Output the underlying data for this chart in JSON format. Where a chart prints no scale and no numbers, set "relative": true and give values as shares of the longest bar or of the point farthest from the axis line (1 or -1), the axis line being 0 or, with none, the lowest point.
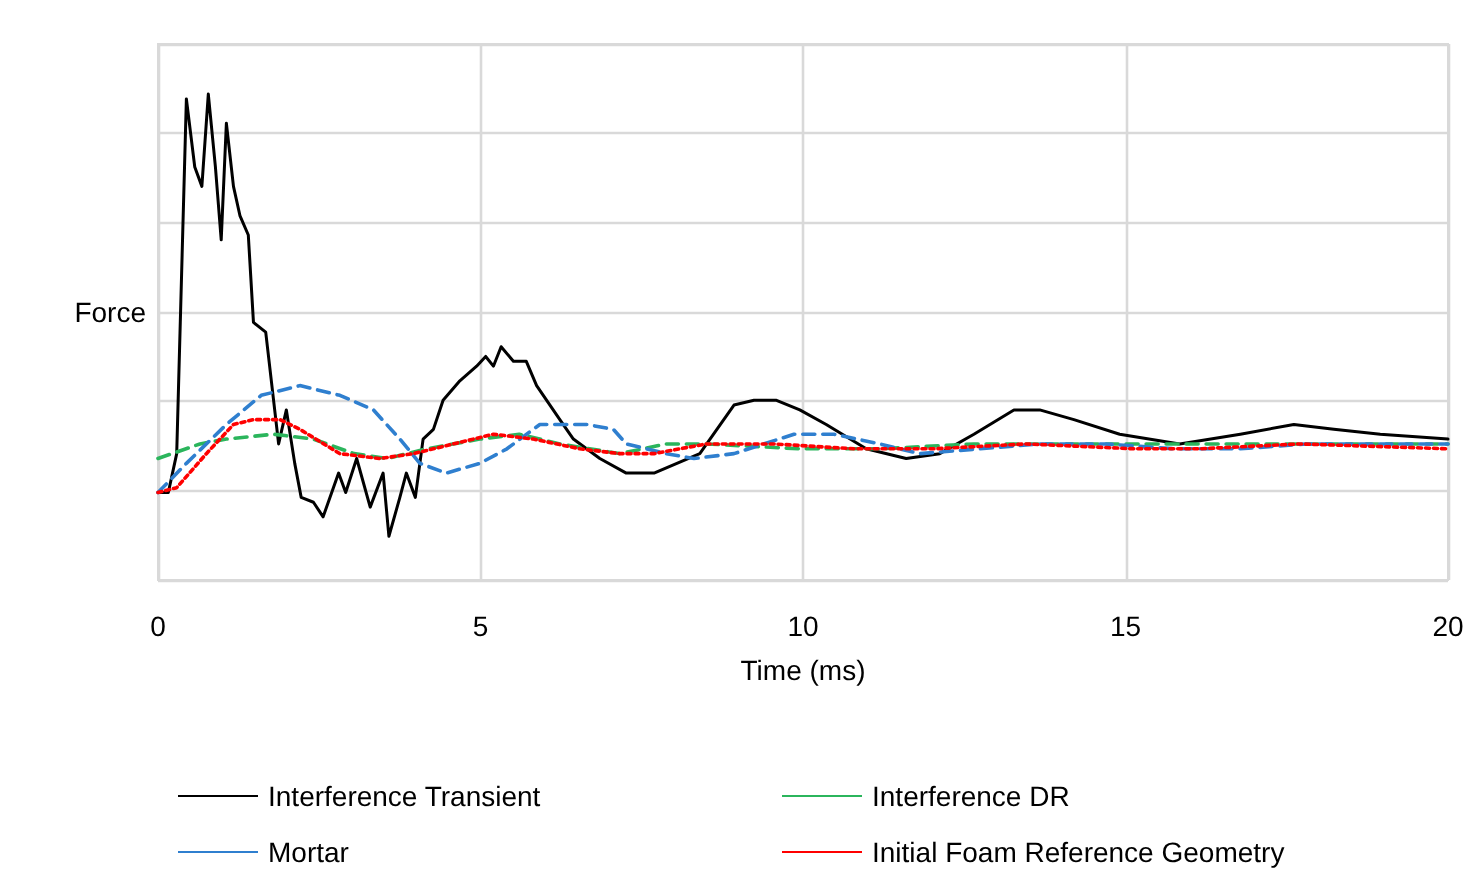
{
  "chart_data": {
    "type": "line",
    "xlabel": "Time (ms)",
    "ylabel": "Force",
    "relative": true,
    "xlim": [
      0,
      20
    ],
    "xticks": [
      0,
      5,
      10,
      15,
      20
    ],
    "grid": true,
    "legend": "bottom",
    "marker": "none",
    "series": [
      {
        "name": "Interference Transient",
        "color": "#000000",
        "line_style": "solid",
        "x": [
          0,
          0.16,
          0.29,
          0.44,
          0.57,
          0.68,
          0.78,
          0.89,
          0.98,
          1.06,
          1.17,
          1.27,
          1.4,
          1.48,
          1.67,
          1.87,
          1.99,
          2.12,
          2.22,
          2.41,
          2.56,
          2.8,
          2.91,
          3.08,
          3.29,
          3.49,
          3.58,
          3.75,
          3.85,
          3.99,
          4.11,
          4.27,
          4.42,
          4.68,
          4.94,
          5.08,
          5.2,
          5.32,
          5.51,
          5.71,
          5.87,
          6.23,
          6.44,
          6.85,
          7.26,
          7.69,
          8.4,
          8.93,
          9.24,
          9.58,
          9.95,
          10.36,
          10.98,
          11.6,
          12.12,
          12.65,
          13.27,
          13.67,
          14.2,
          14.91,
          15.84,
          16.78,
          17.61,
          18.23,
          18.95,
          20
        ],
        "values": [
          0.18,
          0.18,
          0.26,
          0.99,
          0.85,
          0.81,
          1,
          0.85,
          0.7,
          0.94,
          0.81,
          0.75,
          0.71,
          0.53,
          0.51,
          0.28,
          0.35,
          0.24,
          0.17,
          0.16,
          0.13,
          0.22,
          0.18,
          0.25,
          0.15,
          0.22,
          0.09,
          0.17,
          0.22,
          0.17,
          0.29,
          0.31,
          0.37,
          0.41,
          0.44,
          0.46,
          0.44,
          0.48,
          0.45,
          0.45,
          0.4,
          0.33,
          0.29,
          0.25,
          0.22,
          0.22,
          0.26,
          0.36,
          0.37,
          0.37,
          0.35,
          0.32,
          0.27,
          0.25,
          0.26,
          0.3,
          0.35,
          0.35,
          0.33,
          0.3,
          0.28,
          0.3,
          0.32,
          0.31,
          0.3,
          0.29
        ]
      },
      {
        "name": "Interference DR",
        "color": "#2bb55c",
        "line_style": "dashed",
        "x": [
          0,
          0.65,
          1.06,
          1.79,
          2.41,
          3.04,
          3.55,
          4.17,
          4.99,
          5.6,
          6.23,
          7.16,
          7.88,
          8.5,
          9.95,
          11.19,
          12.65,
          14.08,
          15.63,
          17.18,
          20
        ],
        "values": [
          0.25,
          0.28,
          0.29,
          0.3,
          0.29,
          0.26,
          0.25,
          0.27,
          0.29,
          0.3,
          0.28,
          0.26,
          0.28,
          0.28,
          0.27,
          0.27,
          0.28,
          0.28,
          0.28,
          0.28,
          0.28
        ]
      },
      {
        "name": "Mortar",
        "color": "#2f7fcf",
        "line_style": "dashed",
        "x": [
          0,
          0.44,
          1.06,
          1.6,
          2.2,
          2.82,
          3.34,
          3.75,
          4.06,
          4.47,
          4.99,
          5.41,
          5.92,
          6.65,
          7.06,
          7.26,
          7.88,
          8.31,
          8.93,
          9.86,
          10.48,
          11.19,
          11.81,
          12.74,
          13.67,
          14.7,
          15.75,
          16.78,
          17.8,
          19.04,
          20
        ],
        "values": [
          0.18,
          0.24,
          0.32,
          0.38,
          0.4,
          0.38,
          0.35,
          0.29,
          0.24,
          0.22,
          0.24,
          0.27,
          0.32,
          0.32,
          0.31,
          0.28,
          0.26,
          0.25,
          0.26,
          0.3,
          0.3,
          0.28,
          0.26,
          0.27,
          0.28,
          0.28,
          0.27,
          0.27,
          0.28,
          0.28,
          0.28
        ]
      },
      {
        "name": "Initial Foam Reference Geometry",
        "color": "#ff0000",
        "line_style": "dotted",
        "x": [
          0,
          0.29,
          0.75,
          1.17,
          1.48,
          1.89,
          2.2,
          2.82,
          3.44,
          3.96,
          4.58,
          5.2,
          5.82,
          6.54,
          7.16,
          7.69,
          8.5,
          9.55,
          10.79,
          12.03,
          13.46,
          15.13,
          16.15,
          17.7,
          20
        ],
        "values": [
          0.18,
          0.19,
          0.26,
          0.32,
          0.33,
          0.33,
          0.31,
          0.26,
          0.25,
          0.26,
          0.28,
          0.3,
          0.29,
          0.27,
          0.26,
          0.26,
          0.28,
          0.28,
          0.27,
          0.27,
          0.28,
          0.27,
          0.27,
          0.28,
          0.27
        ]
      }
    ]
  }
}
